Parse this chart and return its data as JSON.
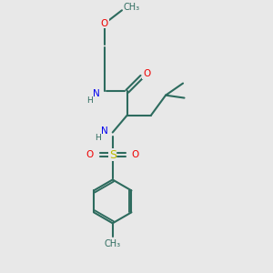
{
  "background_color": "#e8e8e8",
  "bond_color": "#2d6b5e",
  "N_color": "#0000ee",
  "O_color": "#ee0000",
  "S_color": "#bbbb00",
  "line_width": 1.5,
  "fig_width": 3.0,
  "fig_height": 3.0,
  "dpi": 100,
  "xlim": [
    0,
    10
  ],
  "ylim": [
    0,
    10
  ]
}
